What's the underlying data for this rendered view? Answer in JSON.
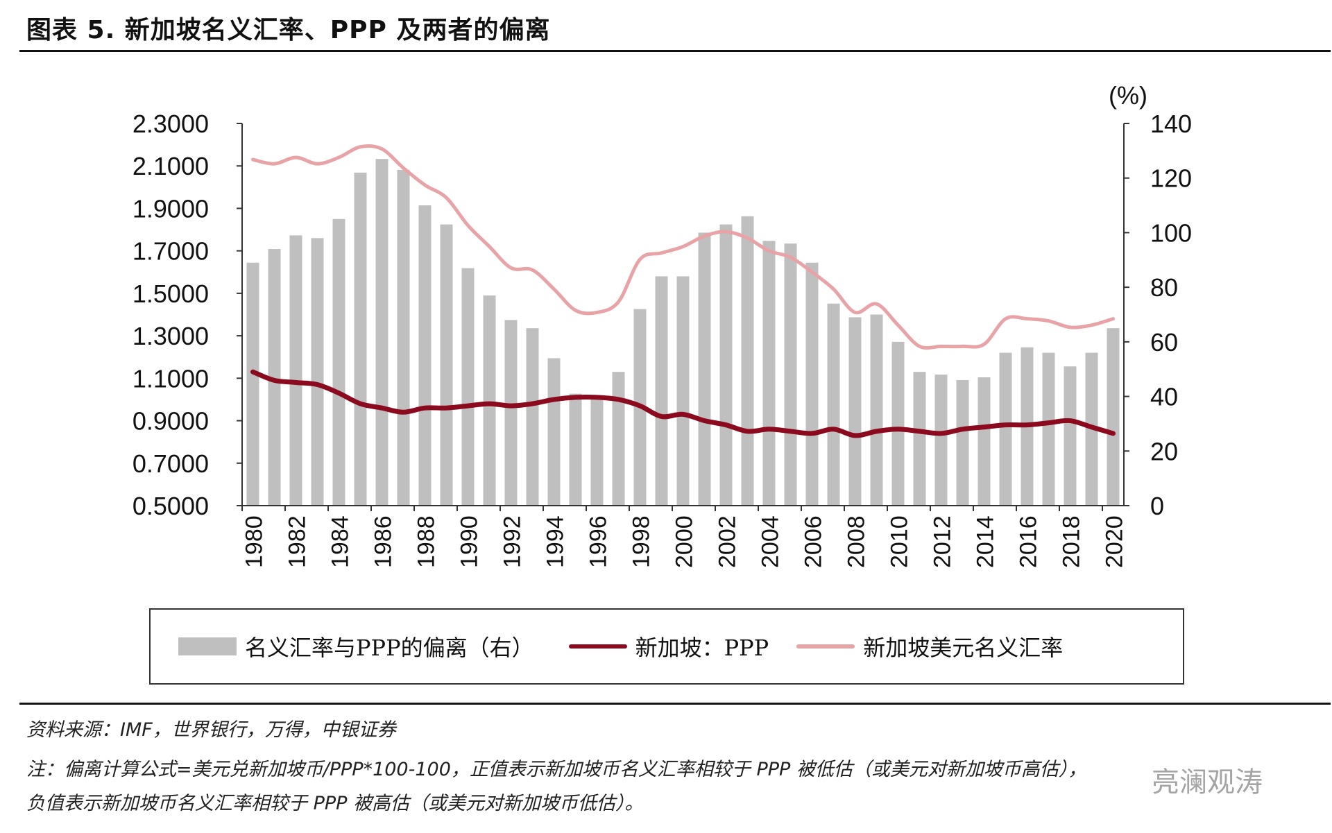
{
  "title": "图表 5. 新加坡名义汇率、PPP 及两者的偏离",
  "source": "资料来源：IMF，世界银行，万得，中银证券",
  "note_line1": "注：偏离计算公式=美元兑新加坡币/PPP*100-100，正值表示新加坡币名义汇率相较于 PPP 被低估（或美元对新加坡币高估），",
  "note_line2": "负值表示新加坡币名义汇率相较于 PPP 被高估（或美元对新加坡币低估）。",
  "watermark": "亮澜观涛",
  "chart_data": {
    "type": "bar+line",
    "title": "",
    "x": [
      1980,
      1981,
      1982,
      1983,
      1984,
      1985,
      1986,
      1987,
      1988,
      1989,
      1990,
      1991,
      1992,
      1993,
      1994,
      1995,
      1996,
      1997,
      1998,
      1999,
      2000,
      2001,
      2002,
      2003,
      2004,
      2005,
      2006,
      2007,
      2008,
      2009,
      2010,
      2011,
      2012,
      2013,
      2014,
      2015,
      2016,
      2017,
      2018,
      2019,
      2020
    ],
    "x_tick_labels": [
      "1980",
      "1982",
      "1984",
      "1986",
      "1988",
      "1990",
      "1992",
      "1994",
      "1996",
      "1998",
      "2000",
      "2002",
      "2004",
      "2006",
      "2008",
      "2010",
      "2012",
      "2014",
      "2016",
      "2018",
      "2020"
    ],
    "left_axis": {
      "ylim": [
        0.5,
        2.3
      ],
      "ticks": [
        "0.5000",
        "0.7000",
        "0.9000",
        "1.1000",
        "1.3000",
        "1.5000",
        "1.7000",
        "1.9000",
        "2.1000",
        "2.3000"
      ]
    },
    "right_axis": {
      "label": "(%)",
      "ylim": [
        0,
        140
      ],
      "ticks": [
        "0",
        "20",
        "40",
        "60",
        "80",
        "100",
        "120",
        "140"
      ]
    },
    "series": [
      {
        "name": "名义汇率与PPP的偏离（右）",
        "type": "bar",
        "axis": "right",
        "color": "#bfbfbf",
        "values": [
          89,
          94,
          99,
          98,
          105,
          122,
          127,
          123,
          110,
          103,
          87,
          77,
          68,
          65,
          54,
          41,
          39,
          49,
          72,
          84,
          84,
          100,
          103,
          106,
          97,
          96,
          89,
          74,
          69,
          70,
          60,
          49,
          48,
          46,
          47,
          56,
          58,
          56,
          51,
          56,
          65
        ]
      },
      {
        "name": "新加坡：PPP",
        "type": "line",
        "axis": "left",
        "color": "#8b0a1e",
        "values": [
          1.13,
          1.09,
          1.08,
          1.07,
          1.03,
          0.98,
          0.96,
          0.94,
          0.96,
          0.96,
          0.97,
          0.98,
          0.97,
          0.98,
          1.0,
          1.01,
          1.01,
          1.0,
          0.97,
          0.92,
          0.93,
          0.9,
          0.88,
          0.85,
          0.86,
          0.85,
          0.84,
          0.86,
          0.83,
          0.85,
          0.86,
          0.85,
          0.84,
          0.86,
          0.87,
          0.88,
          0.88,
          0.89,
          0.9,
          0.87,
          0.84
        ]
      },
      {
        "name": "新加坡美元名义汇率",
        "type": "line",
        "axis": "left",
        "color": "#e8a3a6",
        "values": [
          2.13,
          2.11,
          2.14,
          2.11,
          2.14,
          2.19,
          2.18,
          2.09,
          2.01,
          1.95,
          1.82,
          1.72,
          1.62,
          1.61,
          1.52,
          1.42,
          1.41,
          1.46,
          1.66,
          1.69,
          1.72,
          1.77,
          1.79,
          1.76,
          1.7,
          1.67,
          1.6,
          1.52,
          1.41,
          1.45,
          1.35,
          1.25,
          1.25,
          1.25,
          1.26,
          1.38,
          1.38,
          1.37,
          1.34,
          1.35,
          1.38
        ]
      }
    ],
    "legend_position": "bottom",
    "grid": false
  }
}
